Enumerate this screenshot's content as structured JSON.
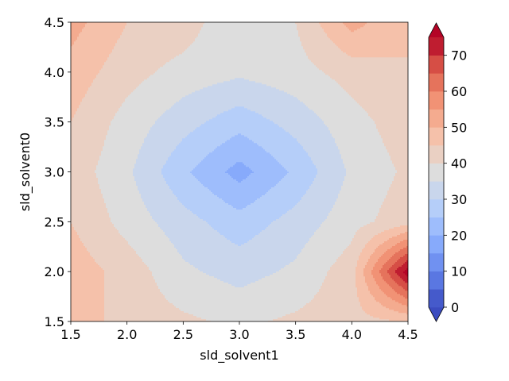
{
  "chart_data": {
    "type": "contourf",
    "title": "",
    "xlabel": "sld_solvent1",
    "ylabel": "sld_solvent0",
    "xlim": [
      1.5,
      4.5
    ],
    "ylim": [
      1.5,
      4.5
    ],
    "x": [
      1.5,
      2.0,
      2.5,
      3.0,
      3.5,
      4.0,
      4.5
    ],
    "y": [
      1.5,
      2.0,
      2.5,
      3.0,
      3.5,
      4.0,
      4.5
    ],
    "z": [
      [
        48,
        43,
        41,
        39,
        41,
        43,
        45
      ],
      [
        48,
        43,
        36,
        33,
        36,
        43,
        78
      ],
      [
        45,
        38,
        32,
        27,
        32,
        38,
        43
      ],
      [
        43,
        36,
        26,
        18,
        26,
        36,
        41
      ],
      [
        45,
        38,
        32,
        27,
        32,
        38,
        43
      ],
      [
        48,
        42,
        38,
        36,
        38,
        42,
        45
      ],
      [
        52,
        45,
        43,
        35,
        40,
        52,
        45
      ]
    ],
    "xticks": [
      "1.5",
      "2.0",
      "2.5",
      "3.0",
      "3.5",
      "4.0",
      "4.5"
    ],
    "yticks": [
      "1.5",
      "2.0",
      "2.5",
      "3.0",
      "3.5",
      "4.0",
      "4.5"
    ],
    "colorbar": {
      "levels": [
        0,
        5,
        10,
        15,
        20,
        25,
        30,
        35,
        40,
        45,
        50,
        55,
        60,
        65,
        70,
        75
      ],
      "ticks": [
        "0",
        "10",
        "20",
        "30",
        "40",
        "50",
        "60",
        "70"
      ],
      "extend": "both",
      "colormap": "coolwarm"
    }
  }
}
